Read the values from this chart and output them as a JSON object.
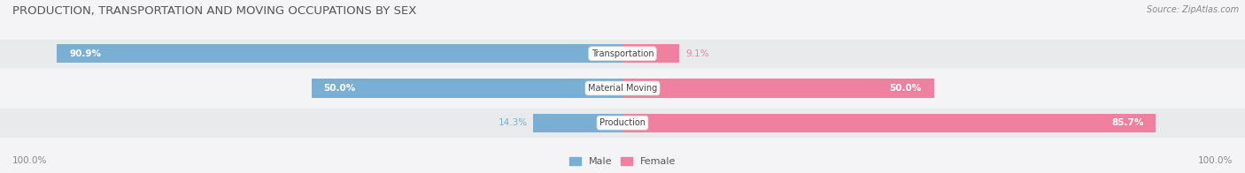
{
  "title": "PRODUCTION, TRANSPORTATION AND MOVING OCCUPATIONS BY SEX",
  "source": "Source: ZipAtlas.com",
  "categories": [
    "Transportation",
    "Material Moving",
    "Production"
  ],
  "male_pct": [
    90.9,
    50.0,
    14.3
  ],
  "female_pct": [
    9.1,
    50.0,
    85.7
  ],
  "male_color": "#7aafd4",
  "female_color": "#f080a0",
  "row_colors": [
    "#e8eaec",
    "#f4f4f6",
    "#e8eaec"
  ],
  "bg_color": "#f4f4f6",
  "axis_label_left": "100.0%",
  "axis_label_right": "100.0%",
  "title_fontsize": 9.5,
  "source_fontsize": 7,
  "bar_label_fontsize": 7.5,
  "cat_label_fontsize": 7,
  "legend_fontsize": 8
}
